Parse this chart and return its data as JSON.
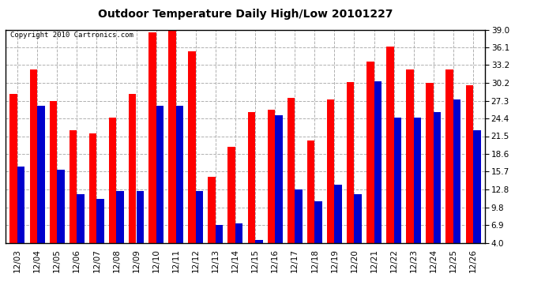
{
  "title": "Outdoor Temperature Daily High/Low 20101227",
  "copyright": "Copyright 2010 Cartronics.com",
  "categories": [
    "12/03",
    "12/04",
    "12/05",
    "12/06",
    "12/07",
    "12/08",
    "12/09",
    "12/10",
    "12/11",
    "12/12",
    "12/13",
    "12/14",
    "12/15",
    "12/16",
    "12/17",
    "12/18",
    "12/19",
    "12/20",
    "12/21",
    "12/22",
    "12/23",
    "12/24",
    "12/25",
    "12/26"
  ],
  "highs": [
    28.5,
    32.5,
    27.3,
    22.5,
    22.0,
    24.5,
    28.5,
    38.5,
    39.2,
    35.5,
    14.8,
    19.8,
    25.4,
    25.8,
    27.8,
    20.8,
    27.5,
    30.4,
    33.8,
    36.2,
    32.5,
    30.2,
    32.5,
    29.9
  ],
  "lows": [
    16.5,
    26.5,
    16.0,
    12.0,
    11.2,
    12.5,
    12.5,
    26.5,
    26.5,
    12.5,
    6.9,
    7.2,
    4.5,
    25.0,
    12.8,
    10.8,
    13.5,
    12.0,
    30.5,
    24.5,
    24.5,
    25.5,
    27.5,
    22.5
  ],
  "high_color": "#ff0000",
  "low_color": "#0000cc",
  "bg_color": "#ffffff",
  "plot_bg_color": "#ffffff",
  "grid_color": "#b0b0b0",
  "yticks": [
    4.0,
    6.9,
    9.8,
    12.8,
    15.7,
    18.6,
    21.5,
    24.4,
    27.3,
    30.2,
    33.2,
    36.1,
    39.0
  ],
  "ymin": 4.0,
  "ymax": 39.0,
  "bar_width": 0.38
}
